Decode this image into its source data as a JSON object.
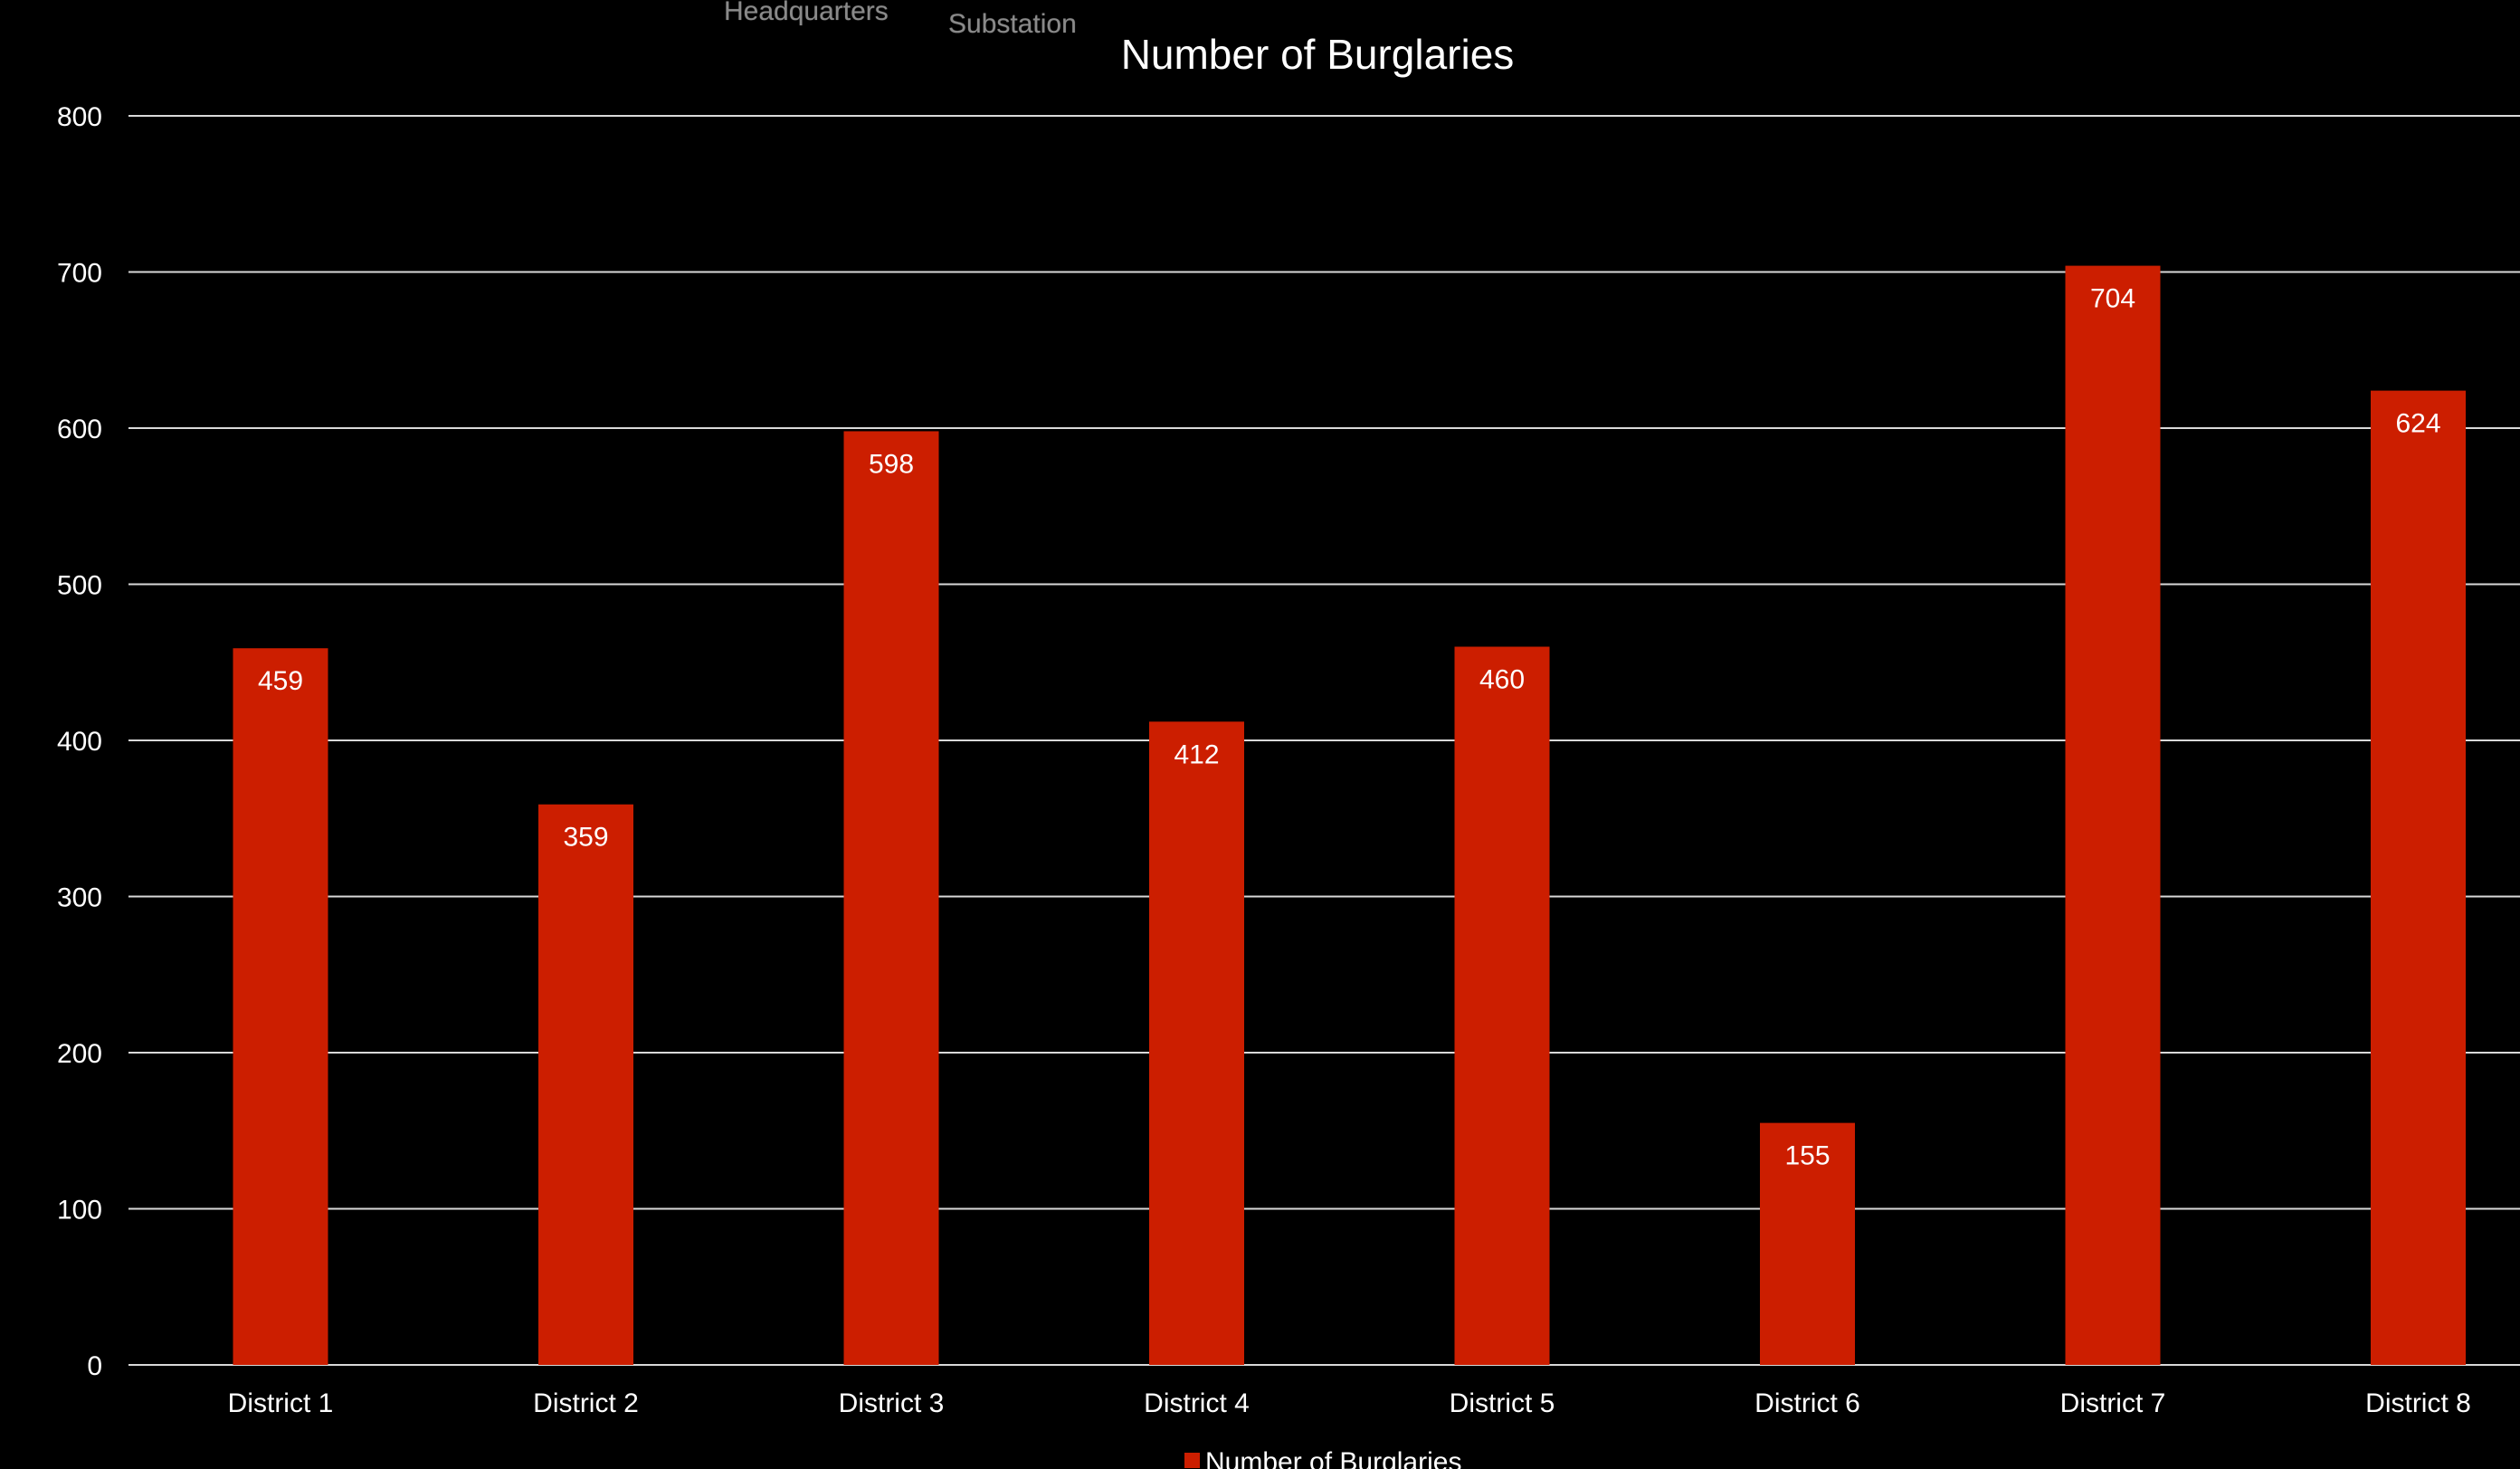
{
  "background_fragments": [
    "Headquarters",
    "Substation"
  ],
  "colors": {
    "background": "#000000",
    "bar": "#cc1e00",
    "text": "#ffffff",
    "grid": "#d9d9d9"
  },
  "chart_data": {
    "type": "bar",
    "title": "Number of Burglaries",
    "xlabel": "",
    "ylabel": "",
    "categories": [
      "District 1",
      "District 2",
      "District 3",
      "District 4",
      "District 5",
      "District 6",
      "District 7",
      "District 8"
    ],
    "series": [
      {
        "name": "Number of Burglaries",
        "values": [
          459,
          359,
          598,
          412,
          460,
          155,
          704,
          624
        ]
      }
    ],
    "ylim": [
      0,
      800
    ],
    "yticks": [
      0,
      100,
      200,
      300,
      400,
      500,
      600,
      700,
      800
    ],
    "grid": true,
    "data_labels": true,
    "legend": {
      "position": "bottom",
      "entries": [
        "Number of Burglaries"
      ]
    }
  }
}
